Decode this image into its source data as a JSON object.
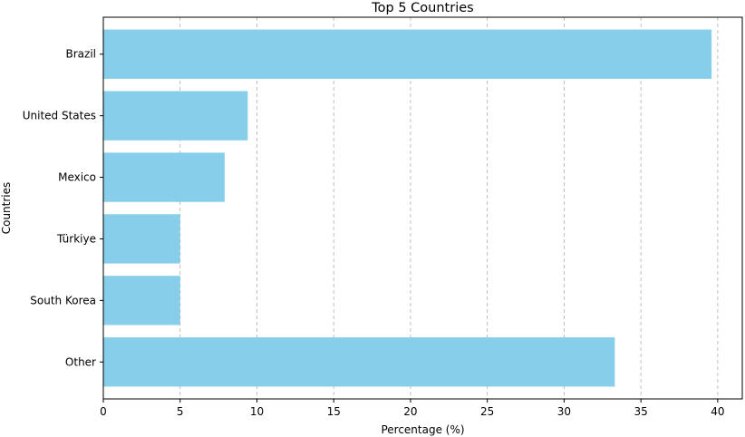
{
  "chart_data": {
    "type": "bar",
    "orientation": "horizontal",
    "title": "Top 5 Countries",
    "xlabel": "Percentage (%)",
    "ylabel": "Countries",
    "categories": [
      "Brazil",
      "United States",
      "Mexico",
      "Türkiye",
      "South Korea",
      "Other"
    ],
    "values": [
      39.6,
      9.4,
      7.9,
      5.0,
      5.0,
      33.3
    ],
    "xlim": [
      0,
      41.6
    ],
    "xticks": [
      0,
      5,
      10,
      15,
      20,
      25,
      30,
      35,
      40
    ],
    "grid": "vertical dashed",
    "bar_color": "#87ceeb",
    "grid_color": "#b0b0b0"
  }
}
